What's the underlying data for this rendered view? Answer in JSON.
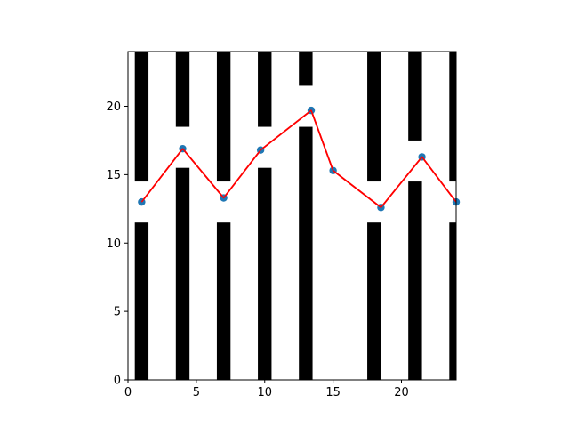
{
  "chart_data": {
    "type": "line",
    "title": "",
    "xlabel": "",
    "ylabel": "",
    "xlim": [
      0,
      24
    ],
    "ylim": [
      0,
      24
    ],
    "grid": false,
    "legend": "none",
    "xticks": [
      0,
      5,
      10,
      15,
      20
    ],
    "xtick_labels": [
      "0",
      "5",
      "10",
      "15",
      "20"
    ],
    "yticks": [
      0,
      5,
      10,
      15,
      20
    ],
    "ytick_labels": [
      "0",
      "5",
      "10",
      "15",
      "20"
    ],
    "bars": {
      "description_type": "vertical black bars, each hanging from top and rising from bottom with a gap",
      "centers": [
        1,
        4,
        7,
        10,
        13,
        18,
        21,
        24
      ],
      "width": 1,
      "top_bar_bottom": [
        14.5,
        18.5,
        14.5,
        18.5,
        21.5,
        14.5,
        17.5,
        14.5
      ],
      "bottom_bar_top": [
        11.5,
        15.5,
        11.5,
        15.5,
        18.5,
        11.5,
        14.5,
        11.5
      ]
    },
    "series": [
      {
        "x": [
          1,
          4,
          7,
          9.7,
          13.4,
          15,
          18.5,
          21.5,
          24
        ],
        "y": [
          13,
          16.9,
          13.3,
          16.8,
          19.7,
          15.3,
          12.6,
          16.3,
          13
        ],
        "line_color": "#ff0000",
        "marker_color": "#1f77b4"
      }
    ]
  }
}
